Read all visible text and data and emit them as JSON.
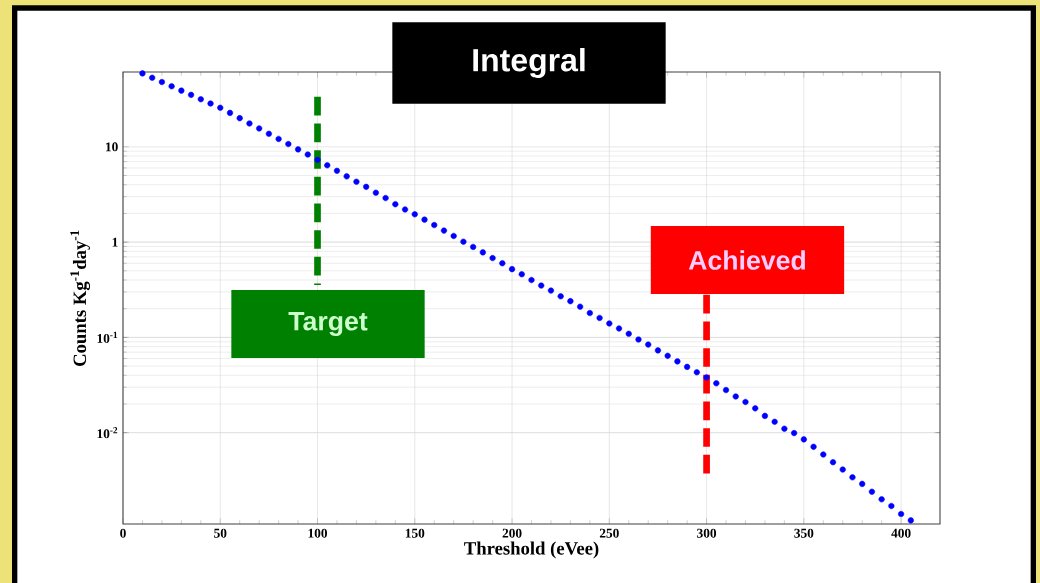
{
  "chart_data": {
    "type": "scatter",
    "title": "Integral",
    "xlabel": "Threshold (eVee)",
    "ylabel": "Counts Kg$^{-1}$day$^{-1}$",
    "x": [
      10,
      15,
      20,
      25,
      30,
      35,
      40,
      45,
      50,
      55,
      60,
      65,
      70,
      75,
      80,
      85,
      90,
      95,
      100,
      105,
      110,
      115,
      120,
      125,
      130,
      135,
      140,
      145,
      150,
      155,
      160,
      165,
      170,
      175,
      180,
      185,
      190,
      195,
      200,
      205,
      210,
      215,
      220,
      225,
      230,
      235,
      240,
      245,
      250,
      255,
      260,
      265,
      270,
      275,
      280,
      285,
      290,
      295,
      300,
      305,
      310,
      315,
      320,
      325,
      330,
      335,
      340,
      345,
      350,
      355,
      360,
      365,
      370,
      375,
      380,
      385,
      390,
      395,
      400,
      405
    ],
    "series": [
      {
        "color": "#0000ff",
        "values": [
          59,
          53.1,
          47.9,
          43.2,
          38.9,
          35.1,
          31.6,
          28.5,
          25.7,
          22.7,
          20.0,
          17.6,
          15.6,
          13.7,
          12.1,
          10.7,
          9.4,
          8.3,
          7.3,
          6.4,
          5.6,
          4.9,
          4.3,
          3.8,
          3.3,
          2.9,
          2.5,
          2.2,
          1.96,
          1.72,
          1.51,
          1.32,
          1.16,
          1.01,
          0.89,
          0.78,
          0.68,
          0.6,
          0.52,
          0.46,
          0.4,
          0.35,
          0.31,
          0.27,
          0.24,
          0.21,
          0.18,
          0.16,
          0.14,
          0.124,
          0.109,
          0.095,
          0.084,
          0.073,
          0.064,
          0.056,
          0.049,
          0.043,
          0.038,
          0.033,
          0.028,
          0.024,
          0.021,
          0.018,
          0.015,
          0.013,
          0.011,
          0.0099,
          0.0085,
          0.0071,
          0.0059,
          0.0049,
          0.0041,
          0.0034,
          0.0029,
          0.0024,
          0.002,
          0.0017,
          0.0014,
          0.0012
        ]
      }
    ],
    "marker": "circle",
    "log": "y",
    "grid": true,
    "xlim": [
      0,
      420
    ],
    "ylim": [
      0.0011,
      61
    ],
    "xticks": [
      0,
      50,
      100,
      150,
      200,
      250,
      300,
      350,
      400
    ],
    "yticks": [
      {
        "value": 0.01,
        "label": "10$^{-2}$"
      },
      {
        "value": 0.1,
        "label": "10$^{-1}$"
      },
      1,
      10
    ],
    "ref_lines": [
      {
        "axis": "x",
        "value": 100,
        "label": "Target",
        "color": "#008000",
        "line_style": "dashed"
      },
      {
        "axis": "x",
        "value": 300,
        "label": "Achieved",
        "color": "#ff0000",
        "line_style": "dashed"
      }
    ]
  }
}
